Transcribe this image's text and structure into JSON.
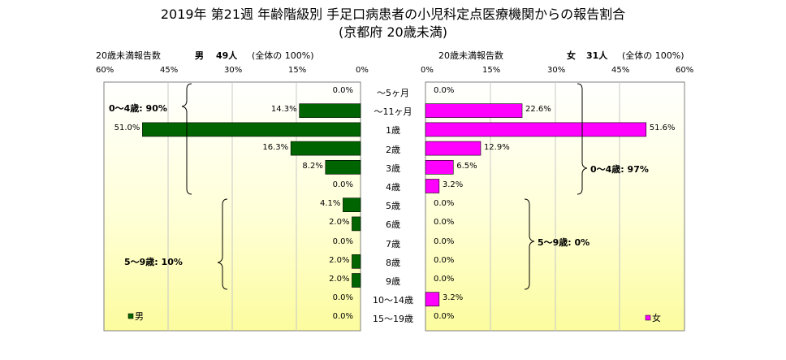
{
  "title": "2019年 第21週 年齢階級別 手足口病患者の小児科定点医療機関からの報告割合",
  "subtitle": "(京都府 20歳未満)",
  "left": {
    "axis_caption": "20歳未満報告数",
    "sex_label": "男",
    "count_label": "49人",
    "total_label": "(全体の 100%)",
    "legend": "男",
    "color": "#006400"
  },
  "right": {
    "axis_caption": "20歳未満報告数",
    "sex_label": "女",
    "count_label": "31人",
    "total_label": "(全体の 100%)",
    "legend": "女",
    "color": "#ff00ff"
  },
  "ticks_left": [
    "60%",
    "45%",
    "30%",
    "15%",
    "0%"
  ],
  "ticks_right": [
    "0%",
    "15%",
    "30%",
    "45%",
    "60%"
  ],
  "annotations": {
    "male_0_4": "0～4歳: 90%",
    "male_5_9": "5～9歳: 10%",
    "female_0_4": "0～4歳: 97%",
    "female_5_9": "5～9歳: 0%"
  },
  "chart_data": {
    "type": "bar",
    "orientation": "horizontal",
    "categories": [
      "～5ヶ月",
      "～11ヶ月",
      "1歳",
      "2歳",
      "3歳",
      "4歳",
      "5歳",
      "6歳",
      "7歳",
      "8歳",
      "9歳",
      "10～14歳",
      "15～19歳"
    ],
    "series": [
      {
        "name": "男",
        "values": [
          0.0,
          14.3,
          51.0,
          16.3,
          8.2,
          0.0,
          4.1,
          2.0,
          0.0,
          2.0,
          2.0,
          0.0,
          0.0
        ],
        "labels": [
          "0.0%",
          "14.3%",
          "51.0%",
          "16.3%",
          "8.2%",
          "0.0%",
          "4.1%",
          "2.0%",
          "0.0%",
          "2.0%",
          "2.0%",
          "0.0%",
          "0.0%"
        ]
      },
      {
        "name": "女",
        "values": [
          0.0,
          22.6,
          51.6,
          12.9,
          6.5,
          3.2,
          0.0,
          0.0,
          0.0,
          0.0,
          0.0,
          3.2,
          0.0
        ],
        "labels": [
          "0.0%",
          "22.6%",
          "51.6%",
          "12.9%",
          "6.5%",
          "3.2%",
          "0.0%",
          "0.0%",
          "0.0%",
          "0.0%",
          "0.0%",
          "3.2%",
          "0.0%"
        ]
      }
    ],
    "xlim": [
      0,
      60
    ],
    "grid": true
  }
}
